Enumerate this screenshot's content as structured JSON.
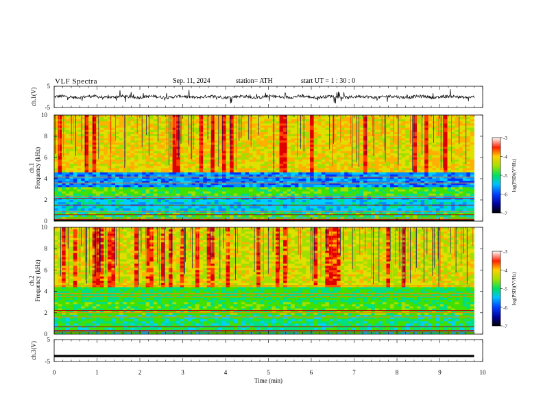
{
  "header": {
    "title": "VLF  Spectra",
    "date": "Sep. 11, 2024",
    "station": "station= ATH",
    "start": "start  UT  =   1  : 30 : 0"
  },
  "colorbar_label": "log(PSD)(V²/Hz)",
  "chart_data": [
    {
      "type": "line",
      "panel": "ch1-waveform",
      "ylabel": "ch.1(V)",
      "ylim": [
        -5,
        5
      ],
      "yticks": [
        "5",
        "-5"
      ],
      "xlim": [
        0,
        10
      ],
      "note_values": "noisy waveform around ~0 V with occasional spikes up to about +3 and down to about -3 V"
    },
    {
      "type": "heatmap",
      "panel": "ch1-spectrogram",
      "ylabel": [
        "ch.1",
        "Frequency  (kHz)"
      ],
      "ylim": [
        0,
        10
      ],
      "yticks": [
        "0",
        "2",
        "4",
        "6",
        "8",
        "10"
      ],
      "xlim": [
        0,
        9.8
      ],
      "colorbar": {
        "min": -7,
        "max": -3,
        "ticks": [
          "-3",
          "-4",
          "-5",
          "-6",
          "-7"
        ]
      }
    },
    {
      "type": "heatmap",
      "panel": "ch2-spectrogram",
      "ylabel": [
        "ch.2",
        "Frequency  (kHz)"
      ],
      "ylim": [
        0,
        10
      ],
      "yticks": [
        "0",
        "2",
        "4",
        "6",
        "8",
        "10"
      ],
      "xlim": [
        0,
        9.8
      ],
      "colorbar": {
        "min": -7,
        "max": -3,
        "ticks": [
          "-3",
          "-4",
          "-5",
          "-6",
          "-7"
        ]
      }
    },
    {
      "type": "line",
      "panel": "ch3-waveform",
      "ylabel": "ch.3(V)",
      "ylim": [
        -5,
        5
      ],
      "yticks": [
        "5",
        "-5"
      ],
      "xlim": [
        0,
        10
      ],
      "values_constant": -2.5
    }
  ],
  "xaxis": {
    "label": "Time  (min)",
    "ticks": [
      "0",
      "1",
      "2",
      "3",
      "4",
      "5",
      "6",
      "7",
      "8",
      "9",
      "10"
    ],
    "range": [
      0,
      10
    ]
  }
}
